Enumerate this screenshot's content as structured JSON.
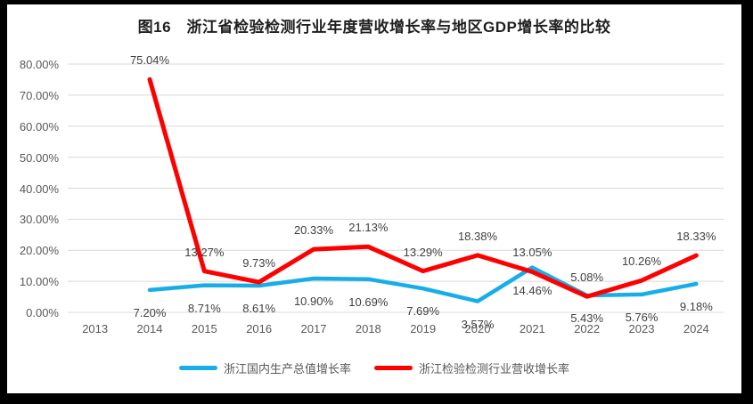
{
  "frame": {
    "border_color": "#000000",
    "background": "#FFFFFF"
  },
  "chart_data": {
    "type": "line",
    "title": "图16　浙江省检验检测行业年度营收增长率与地区GDP增长率的比较",
    "categories": [
      "2013",
      "2014",
      "2015",
      "2016",
      "2017",
      "2018",
      "2019",
      "2020",
      "2021",
      "2022",
      "2023",
      "2024"
    ],
    "series": [
      {
        "name": "浙江国内生产总值增长率",
        "color": "#17AEE8",
        "line_width": 4.5,
        "label_position": "below",
        "values": [
          null,
          7.2,
          8.71,
          8.61,
          10.9,
          10.69,
          7.69,
          3.57,
          14.46,
          5.43,
          5.76,
          9.18
        ]
      },
      {
        "name": "浙江检验检测行业营收增长率",
        "color": "#FE0000",
        "line_width": 5,
        "label_position": "above",
        "values": [
          null,
          75.04,
          13.27,
          9.73,
          20.33,
          21.13,
          13.29,
          18.38,
          13.05,
          5.08,
          10.26,
          18.33
        ]
      }
    ],
    "ylim": [
      0,
      80
    ],
    "ytick_step": 10,
    "ytick_format": "0.00%",
    "data_label_format": "0.00%",
    "grid": true,
    "gridline_color": "#D9D9D9",
    "axis_label_color": "#595959",
    "data_label_color": "#404040",
    "legend_position": "bottom"
  }
}
